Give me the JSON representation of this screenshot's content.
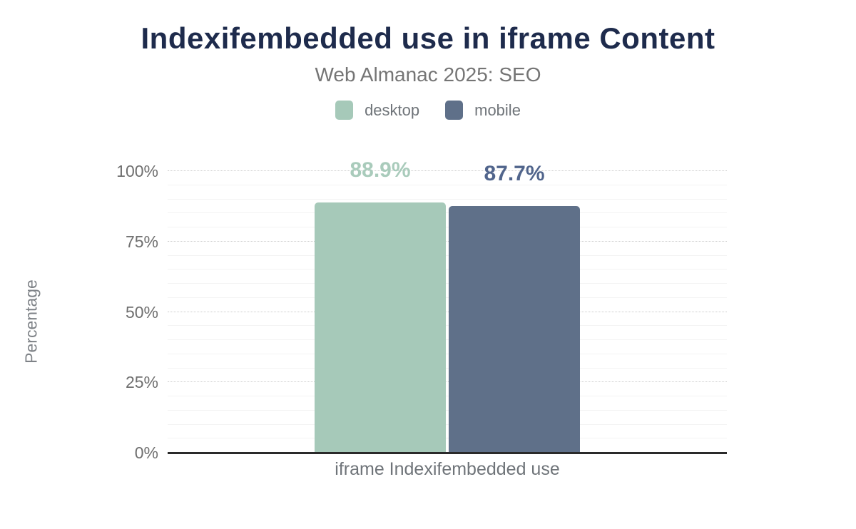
{
  "chart_data": {
    "type": "bar",
    "title": "Indexifembedded use in iframe Content",
    "subtitle": "Web Almanac 2025: SEO",
    "xlabel": "iframe Indexifembedded use",
    "ylabel": "Percentage",
    "categories": [
      "iframe Indexifembedded use"
    ],
    "series": [
      {
        "name": "desktop",
        "values": [
          88.9
        ],
        "data_label": "88.9%",
        "color": "#a6c9b9",
        "label_color": "#a9cbbb"
      },
      {
        "name": "mobile",
        "values": [
          87.7
        ],
        "data_label": "87.7%",
        "color": "#5f7089",
        "label_color": "#51658c"
      }
    ],
    "ylim": [
      0,
      100
    ],
    "yticks": [
      "0%",
      "25%",
      "50%",
      "75%",
      "100%"
    ],
    "grid": {
      "minor_step_percent": 5,
      "major_step_percent": 25,
      "minor_color": "#f3f3f3",
      "major_color": "#cccccc",
      "major_style": "dotted"
    },
    "legend_position": "top"
  },
  "colors": {
    "title": "#1e2b4c",
    "subtitle": "#757575",
    "axis_text": "#6f6f6f",
    "legend_text": "#6f7479",
    "axis_line": "#2a2a2a",
    "background": "#ffffff"
  }
}
